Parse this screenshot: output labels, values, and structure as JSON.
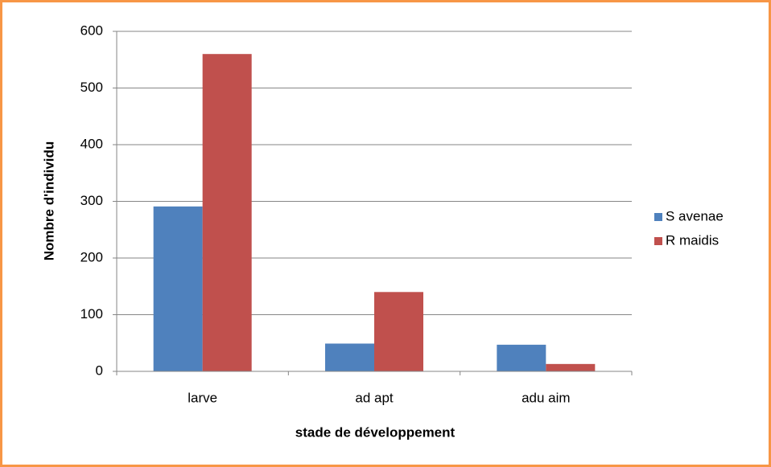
{
  "chart_data": {
    "type": "bar",
    "xlabel": "stade de développement",
    "ylabel": "Nombre d'individu",
    "categories": [
      "larve",
      "ad apt",
      "adu aim"
    ],
    "series": [
      {
        "name": "S avenae",
        "color": "#4f81bd",
        "values": [
          291,
          49,
          47
        ]
      },
      {
        "name": "R maidis",
        "color": "#c0504d",
        "values": [
          560,
          140,
          13
        ]
      }
    ],
    "ylim": [
      0,
      600
    ],
    "yticks": [
      0,
      100,
      200,
      300,
      400,
      500,
      600
    ],
    "grid": true,
    "legend": "right"
  }
}
